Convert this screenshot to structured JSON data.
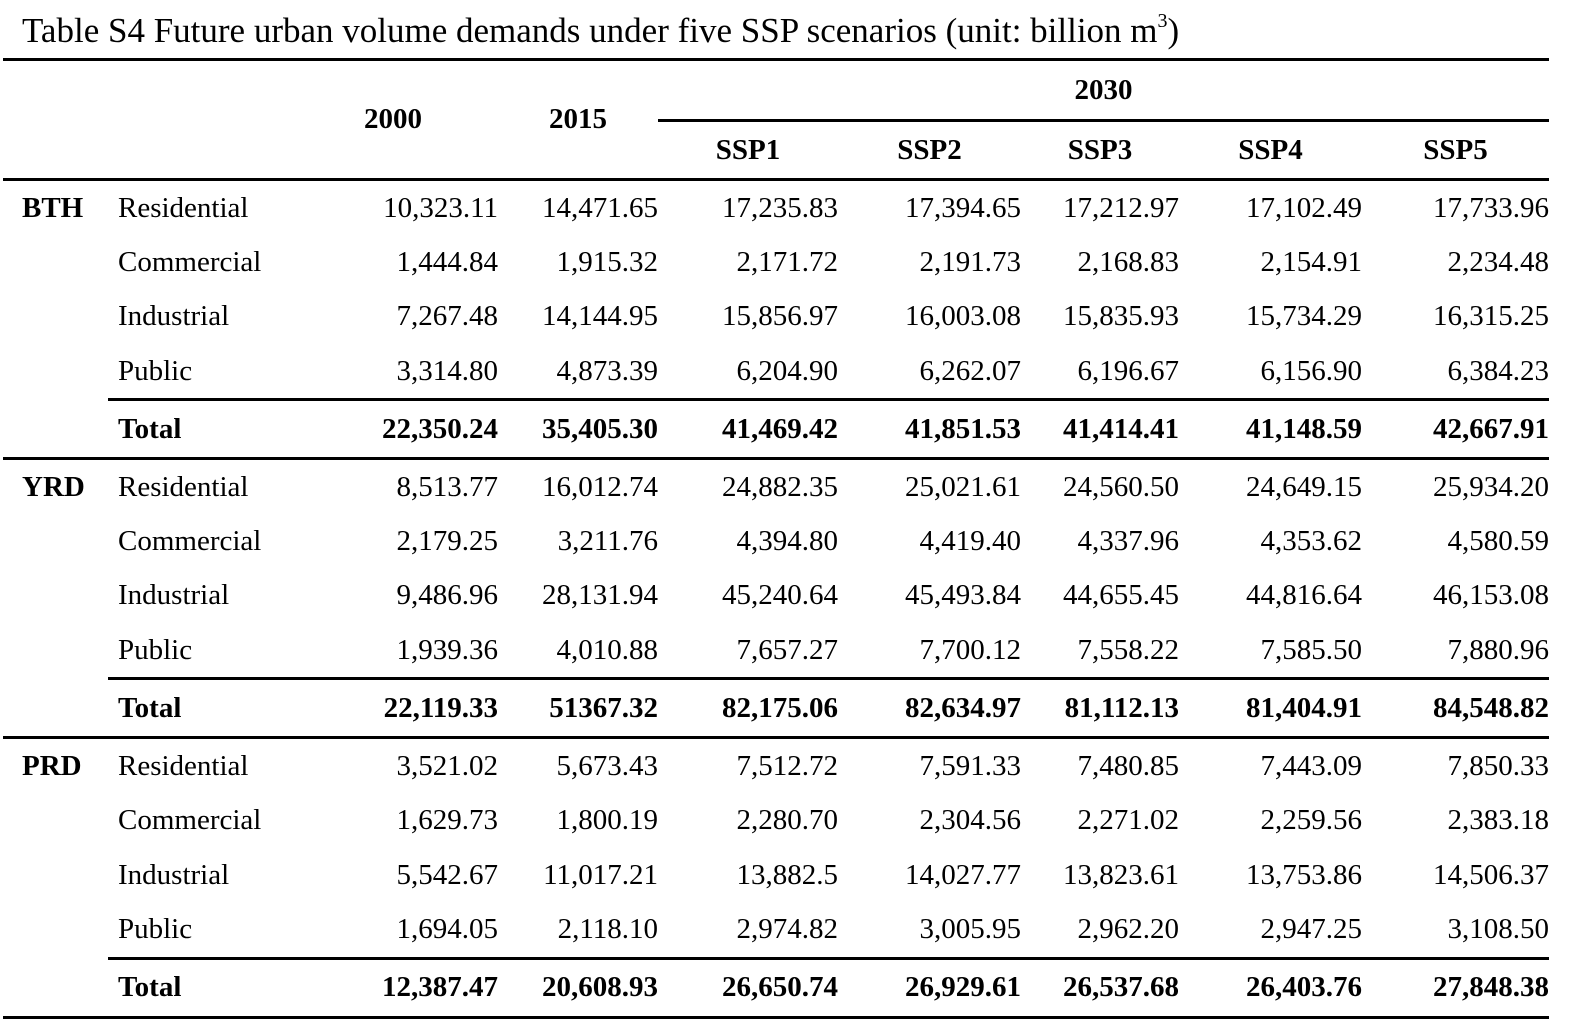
{
  "caption": {
    "text": "Table S4 Future urban volume demands under five SSP scenarios (unit: billion m",
    "superscript": "3",
    "close": ")"
  },
  "header": {
    "year_2000": "2000",
    "year_2015": "2015",
    "year_2030": "2030",
    "ssp": [
      "SSP1",
      "SSP2",
      "SSP3",
      "SSP4",
      "SSP5"
    ]
  },
  "groups": [
    {
      "region": "BTH",
      "rows": [
        {
          "label": "Residential",
          "values": [
            "10,323.11",
            "14,471.65",
            "17,235.83",
            "17,394.65",
            "17,212.97",
            "17,102.49",
            "17,733.96"
          ]
        },
        {
          "label": "Commercial",
          "values": [
            "1,444.84",
            "1,915.32",
            "2,171.72",
            "2,191.73",
            "2,168.83",
            "2,154.91",
            "2,234.48"
          ]
        },
        {
          "label": "Industrial",
          "values": [
            "7,267.48",
            "14,144.95",
            "15,856.97",
            "16,003.08",
            "15,835.93",
            "15,734.29",
            "16,315.25"
          ]
        },
        {
          "label": "Public",
          "values": [
            "3,314.80",
            "4,873.39",
            "6,204.90",
            "6,262.07",
            "6,196.67",
            "6,156.90",
            "6,384.23"
          ]
        }
      ],
      "total": {
        "label": "Total",
        "values": [
          "22,350.24",
          "35,405.30",
          "41,469.42",
          "41,851.53",
          "41,414.41",
          "41,148.59",
          "42,667.91"
        ]
      }
    },
    {
      "region": "YRD",
      "rows": [
        {
          "label": "Residential",
          "values": [
            "8,513.77",
            "16,012.74",
            "24,882.35",
            "25,021.61",
            "24,560.50",
            "24,649.15",
            "25,934.20"
          ]
        },
        {
          "label": "Commercial",
          "values": [
            "2,179.25",
            "3,211.76",
            "4,394.80",
            "4,419.40",
            "4,337.96",
            "4,353.62",
            "4,580.59"
          ]
        },
        {
          "label": "Industrial",
          "values": [
            "9,486.96",
            "28,131.94",
            "45,240.64",
            "45,493.84",
            "44,655.45",
            "44,816.64",
            "46,153.08"
          ]
        },
        {
          "label": "Public",
          "values": [
            "1,939.36",
            "4,010.88",
            "7,657.27",
            "7,700.12",
            "7,558.22",
            "7,585.50",
            "7,880.96"
          ]
        }
      ],
      "total": {
        "label": "Total",
        "values": [
          "22,119.33",
          "51367.32",
          "82,175.06",
          "82,634.97",
          "81,112.13",
          "81,404.91",
          "84,548.82"
        ]
      }
    },
    {
      "region": "PRD",
      "rows": [
        {
          "label": "Residential",
          "values": [
            "3,521.02",
            "5,673.43",
            "7,512.72",
            "7,591.33",
            "7,480.85",
            "7,443.09",
            "7,850.33"
          ]
        },
        {
          "label": "Commercial",
          "values": [
            "1,629.73",
            "1,800.19",
            "2,280.70",
            "2,304.56",
            "2,271.02",
            "2,259.56",
            "2,383.18"
          ]
        },
        {
          "label": "Industrial",
          "values": [
            "5,542.67",
            "11,017.21",
            "13,882.5",
            "14,027.77",
            "13,823.61",
            "13,753.86",
            "14,506.37"
          ]
        },
        {
          "label": "Public",
          "values": [
            "1,694.05",
            "2,118.10",
            "2,974.82",
            "3,005.95",
            "2,962.20",
            "2,947.25",
            "3,108.50"
          ]
        }
      ],
      "total": {
        "label": "Total",
        "values": [
          "12,387.47",
          "20,608.93",
          "26,650.74",
          "26,929.61",
          "26,537.68",
          "26,403.76",
          "27,848.38"
        ]
      }
    }
  ]
}
